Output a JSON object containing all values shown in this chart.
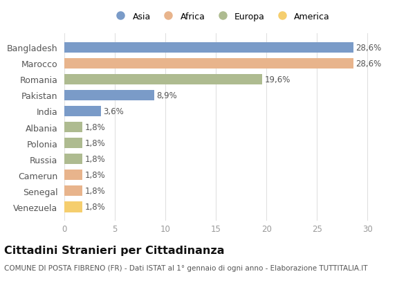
{
  "categories": [
    "Bangladesh",
    "Marocco",
    "Romania",
    "Pakistan",
    "India",
    "Albania",
    "Polonia",
    "Russia",
    "Camerun",
    "Senegal",
    "Venezuela"
  ],
  "values": [
    28.6,
    28.6,
    19.6,
    8.9,
    3.6,
    1.8,
    1.8,
    1.8,
    1.8,
    1.8,
    1.8
  ],
  "labels": [
    "28,6%",
    "28,6%",
    "19,6%",
    "8,9%",
    "3,6%",
    "1,8%",
    "1,8%",
    "1,8%",
    "1,8%",
    "1,8%",
    "1,8%"
  ],
  "colors": [
    "#7a9bc8",
    "#e8b48c",
    "#aebb90",
    "#7a9bc8",
    "#7a9bc8",
    "#aebb90",
    "#aebb90",
    "#aebb90",
    "#e8b48c",
    "#e8b48c",
    "#f5ce6e"
  ],
  "legend_labels": [
    "Asia",
    "Africa",
    "Europa",
    "America"
  ],
  "legend_colors": [
    "#7a9bc8",
    "#e8b48c",
    "#aebb90",
    "#f5ce6e"
  ],
  "xlim": [
    0,
    31
  ],
  "xticks": [
    0,
    5,
    10,
    15,
    20,
    25,
    30
  ],
  "title": "Cittadini Stranieri per Cittadinanza",
  "subtitle": "COMUNE DI POSTA FIBRENO (FR) - Dati ISTAT al 1° gennaio di ogni anno - Elaborazione TUTTITALIA.IT",
  "bg_color": "#ffffff",
  "bar_height": 0.65,
  "label_fontsize": 8.5,
  "ytick_fontsize": 9,
  "xtick_fontsize": 8.5,
  "title_fontsize": 11.5,
  "subtitle_fontsize": 7.5,
  "grid_color": "#e0e0e0",
  "text_color": "#555555",
  "label_color": "#555555"
}
